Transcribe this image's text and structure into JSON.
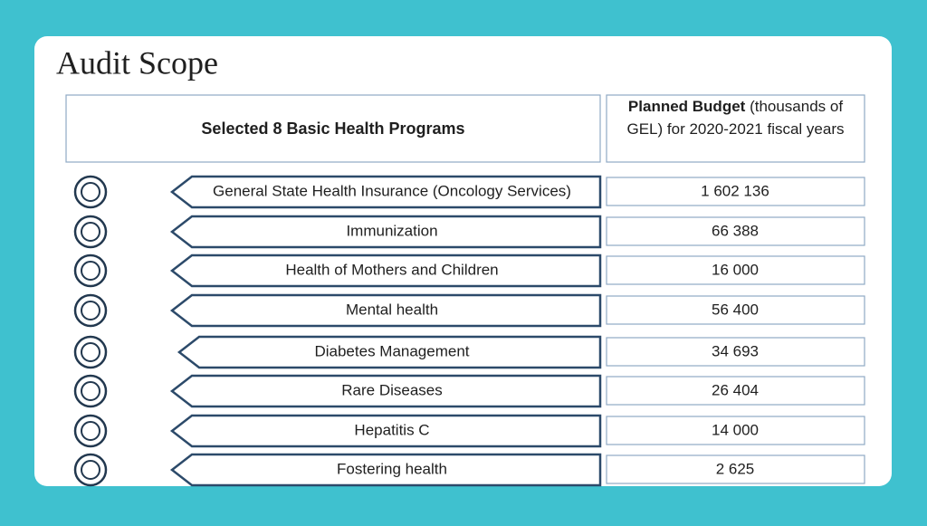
{
  "title": "Audit Scope",
  "header": {
    "programs": "Selected 8 Basic Health Programs",
    "budget_bold": "Planned Budget",
    "budget_rest": "(thousands of GEL) for 2020-2021 fiscal years"
  },
  "rows": [
    {
      "program": "General State Health Insurance (Oncology Services)",
      "budget": "1 602 136"
    },
    {
      "program": "Immunization",
      "budget": "66 388"
    },
    {
      "program": "Health of Mothers and Children",
      "budget": "16 000"
    },
    {
      "program": "Mental health",
      "budget": "56 400"
    },
    {
      "program": "Diabetes  Management",
      "budget": "34 693"
    },
    {
      "program": "Rare Diseases",
      "budget": "26 404"
    },
    {
      "program": "Hepatitis C",
      "budget": "14 000"
    },
    {
      "program": "Fostering health",
      "budget": "2 625"
    }
  ]
}
